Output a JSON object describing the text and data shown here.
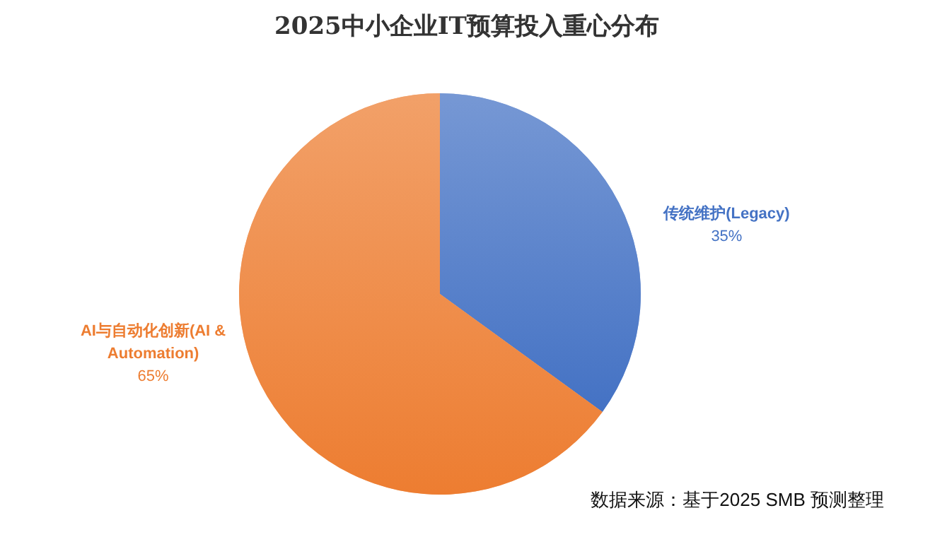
{
  "chart_data": {
    "type": "pie",
    "title": "2025中小企业IT预算投入重心分布",
    "categories": [
      "传统维护(Legacy)",
      "AI与自动化创新(AI & Automation)"
    ],
    "values": [
      35,
      65
    ],
    "colors": [
      "#4472c4",
      "#ed7d31"
    ],
    "value_labels": [
      "35%",
      "65%"
    ],
    "annotations": [
      "数据来源：基于2025 SMB 预测整理"
    ]
  }
}
